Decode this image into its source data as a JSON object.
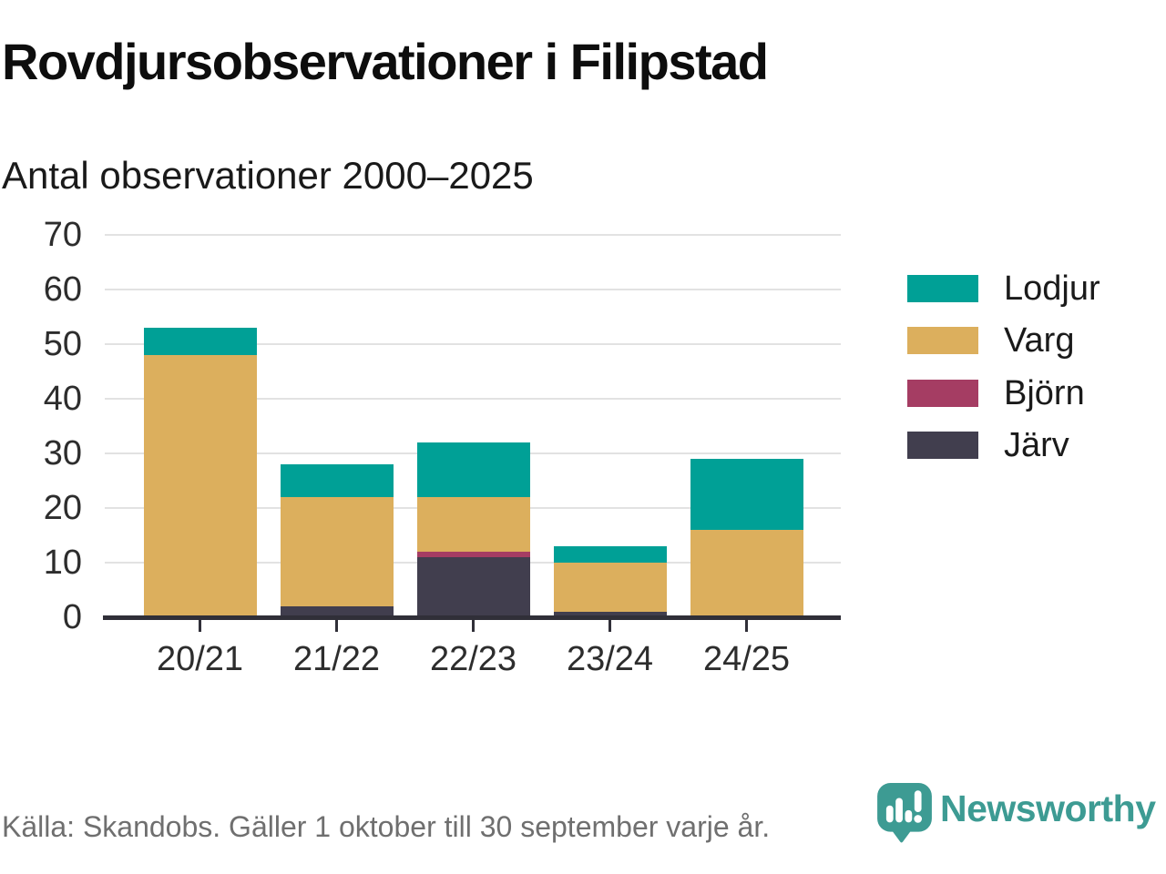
{
  "header": {
    "title": "Rovdjursobservationer i Filipstad",
    "subtitle": "Antal observationer 2000–2025"
  },
  "chart_data": {
    "type": "bar",
    "stacked": true,
    "title": "Rovdjursobservationer i Filipstad",
    "subtitle": "Antal observationer 2000–2025",
    "categories": [
      "20/21",
      "21/22",
      "22/23",
      "23/24",
      "24/25"
    ],
    "series": [
      {
        "name": "Lodjur",
        "color": "#00A096",
        "values": [
          5,
          6,
          10,
          3,
          13
        ]
      },
      {
        "name": "Varg",
        "color": "#DCAF5D",
        "values": [
          48,
          20,
          10,
          9,
          16
        ]
      },
      {
        "name": "Björn",
        "color": "#A53D63",
        "values": [
          0,
          0,
          1,
          0,
          0
        ]
      },
      {
        "name": "Järv",
        "color": "#413E4E",
        "values": [
          0,
          2,
          11,
          1,
          0
        ]
      }
    ],
    "stack_order_bottom_to_top": [
      "Järv",
      "Björn",
      "Varg",
      "Lodjur"
    ],
    "totals": [
      53,
      28,
      32,
      13,
      29
    ],
    "xlabel": "",
    "ylabel": "",
    "ylim": [
      0,
      70
    ],
    "yticks": [
      0,
      10,
      20,
      30,
      40,
      50,
      60,
      70
    ],
    "grid": "horizontal",
    "legend_position": "right"
  },
  "footer": {
    "source": "Källa: Skandobs. Gäller 1 oktober till 30 september varje år.",
    "brand": "Newsworthy"
  },
  "colors": {
    "lodjur_teal": "#00A096",
    "varg_gold": "#DCAF5D",
    "bjorn_maroon": "#A53D63",
    "jarv_dark": "#413E4E",
    "axis": "#302F38",
    "gridline": "#E2E2E2",
    "title_text": "#0D0D0D",
    "tick_text": "#2D2D2D",
    "source_text": "#6F6F6F",
    "brand_teal": "#3D9B93"
  }
}
